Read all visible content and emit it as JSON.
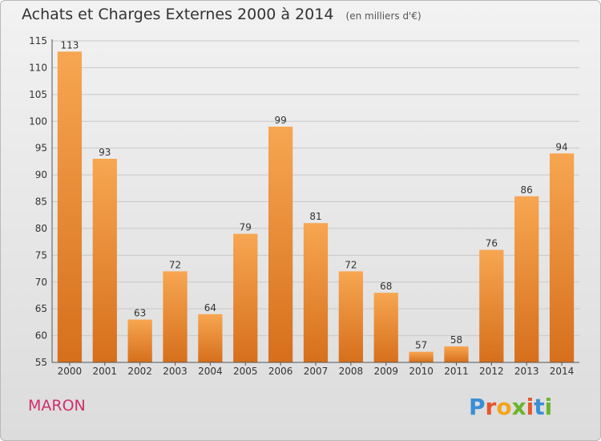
{
  "chart_data": {
    "type": "bar",
    "title": "Achats et Charges Externes 2000 à 2014",
    "subtitle": "(en milliers d'€)",
    "categories": [
      "2000",
      "2001",
      "2002",
      "2003",
      "2004",
      "2005",
      "2006",
      "2007",
      "2008",
      "2009",
      "2010",
      "2011",
      "2012",
      "2013",
      "2014"
    ],
    "values": [
      113,
      93,
      63,
      72,
      64,
      79,
      99,
      81,
      72,
      68,
      57,
      58,
      76,
      86,
      94
    ],
    "ylim": [
      55,
      115
    ],
    "yticks": [
      55,
      60,
      65,
      70,
      75,
      80,
      85,
      90,
      95,
      100,
      105,
      110,
      115
    ],
    "grid": true,
    "bar_color": "#f0922e"
  },
  "footer": {
    "place": "MARON",
    "brand": "Proxiti",
    "brand_letters": [
      "P",
      "r",
      "o",
      "x",
      "i",
      "t",
      "i"
    ],
    "brand_colors": [
      "#3a8ed6",
      "#e8552c",
      "#f2a51c",
      "#6ab42d",
      "#e8552c",
      "#3a8ed6",
      "#6ab42d"
    ]
  }
}
